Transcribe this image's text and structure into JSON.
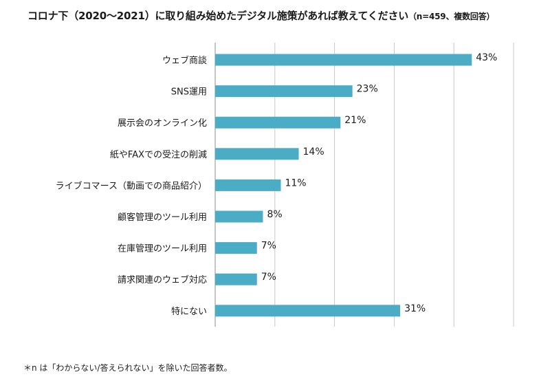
{
  "title": "コロナ下（2020～2021）に取り組み始めたデジタル施策があれば教えてください",
  "title_note": "（n=459、複数回答）",
  "footnote": "＊n は「わからない/答えられない」を除いた回答者数。",
  "colors": {
    "bar": "#4bacc6",
    "grid": "#c8c8c8",
    "axis": "#8c8c8c"
  },
  "chart_data": {
    "type": "bar",
    "orientation": "horizontal",
    "categories": [
      "ウェブ商談",
      "SNS運用",
      "展示会のオンライン化",
      "紙やFAXでの受注の削減",
      "ライブコマース（動画での商品紹介）",
      "顧客管理のツール利用",
      "在庫管理のツール利用",
      "請求関連のウェブ対応",
      "特にない"
    ],
    "values": [
      43,
      23,
      21,
      14,
      11,
      8,
      7,
      7,
      31
    ],
    "data_labels": [
      "43%",
      "23%",
      "21%",
      "14%",
      "11%",
      "8%",
      "7%",
      "7%",
      "31%"
    ],
    "xlim": [
      0,
      50
    ],
    "grid": true
  }
}
